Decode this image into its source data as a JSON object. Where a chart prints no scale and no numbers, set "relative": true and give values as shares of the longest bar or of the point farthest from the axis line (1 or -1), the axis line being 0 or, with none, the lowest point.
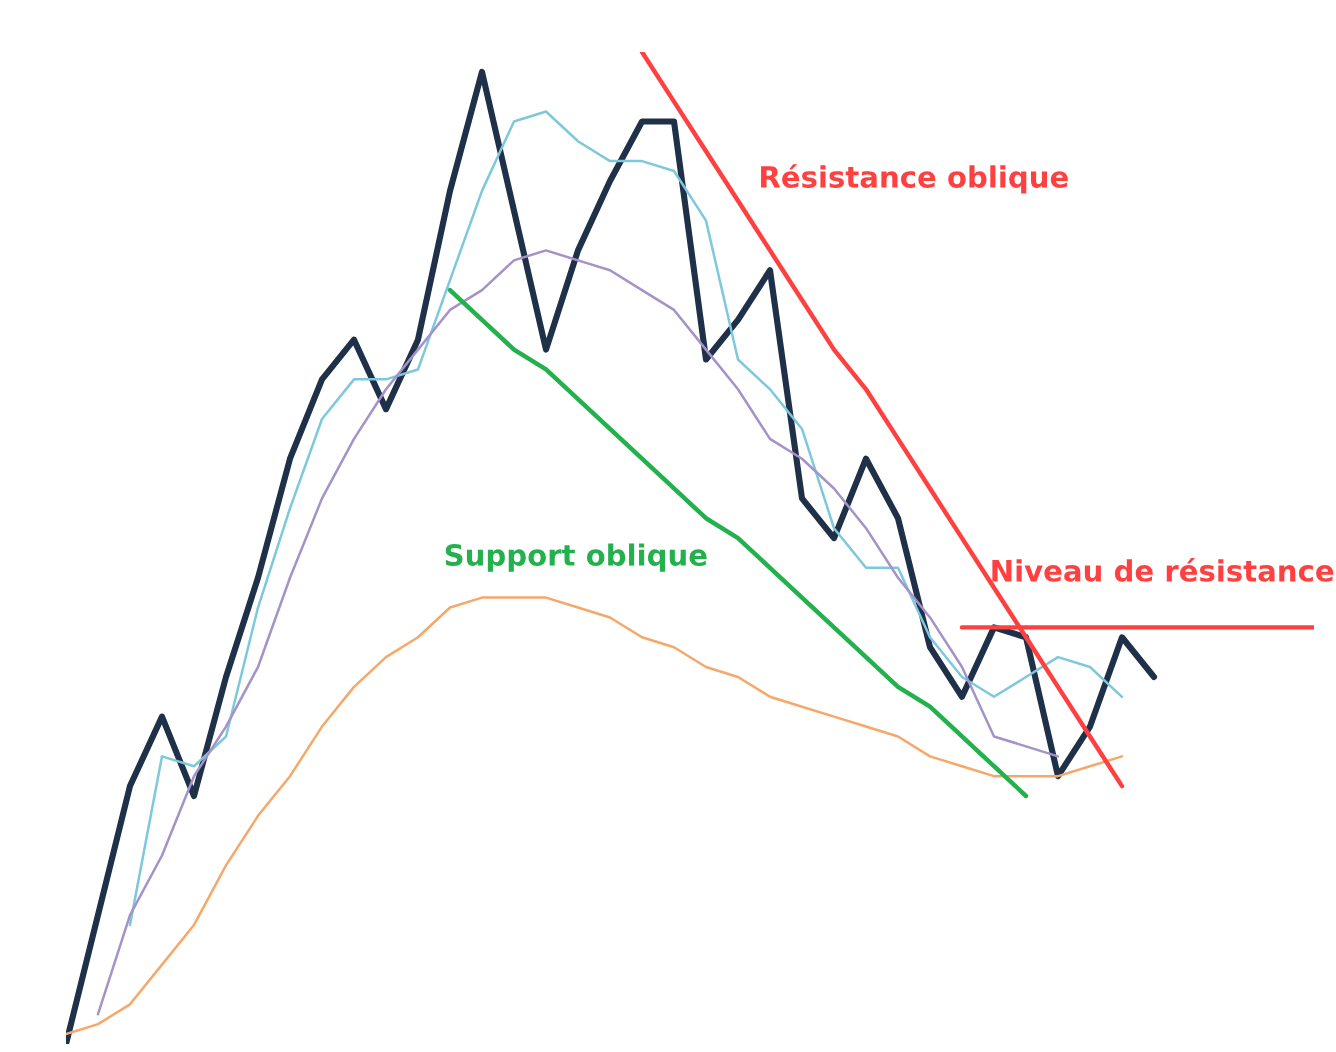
{
  "chart_data": {
    "type": "line",
    "relative": true,
    "categories": [
      null,
      null,
      null,
      null,
      null,
      null,
      null,
      null,
      null,
      null,
      null,
      null,
      null,
      null,
      null,
      null,
      null,
      null,
      null,
      null,
      null,
      null,
      null,
      null,
      null,
      null,
      null,
      null,
      null,
      null,
      null,
      null,
      null,
      null,
      null,
      null,
      null,
      null,
      null,
      null
    ],
    "series": [
      {
        "color": "#1f3049",
        "values": [
          0,
          0.13,
          0.26,
          0.33,
          0.25,
          0.37,
          0.47,
          0.59,
          0.67,
          0.71,
          0.64,
          0.71,
          0.86,
          0.98,
          0.84,
          0.7,
          0.8,
          0.87,
          0.93,
          0.93,
          0.69,
          0.73,
          0.78,
          0.55,
          0.51,
          0.59,
          0.53,
          0.4,
          0.35,
          0.42,
          0.41,
          0.27,
          0.32,
          0.41,
          0.37,
          null,
          null,
          null,
          null,
          null
        ]
      },
      {
        "color": "#7ec8dc",
        "values": [
          null,
          null,
          0.12,
          0.29,
          0.28,
          0.31,
          0.44,
          0.54,
          0.63,
          0.67,
          0.67,
          0.68,
          0.77,
          0.86,
          0.93,
          0.94,
          0.91,
          0.89,
          0.89,
          0.88,
          0.83,
          0.69,
          0.66,
          0.62,
          0.52,
          0.48,
          0.48,
          0.41,
          0.37,
          0.35,
          0.37,
          0.39,
          0.38,
          0.35,
          null,
          null,
          null,
          null,
          null,
          null
        ]
      },
      {
        "color": "#a393c8",
        "values": [
          null,
          0.03,
          0.13,
          0.19,
          0.27,
          0.32,
          0.38,
          0.47,
          0.55,
          0.61,
          0.66,
          0.7,
          0.74,
          0.76,
          0.79,
          0.8,
          0.79,
          0.78,
          0.76,
          0.74,
          0.7,
          0.66,
          0.61,
          0.59,
          0.56,
          0.52,
          0.47,
          0.43,
          0.38,
          0.31,
          0.3,
          0.29,
          null,
          null,
          null,
          null,
          null,
          null,
          null,
          null
        ]
      },
      {
        "color": "#f5a86a",
        "values": [
          0.01,
          0.02,
          0.04,
          0.08,
          0.12,
          0.18,
          0.23,
          0.27,
          0.32,
          0.36,
          0.39,
          0.41,
          0.44,
          0.45,
          0.45,
          0.45,
          0.44,
          0.43,
          0.41,
          0.4,
          0.38,
          0.37,
          0.35,
          0.34,
          0.33,
          0.32,
          0.31,
          0.29,
          0.28,
          0.27,
          0.27,
          0.27,
          0.28,
          0.29,
          null,
          null,
          null,
          null,
          null,
          null
        ]
      },
      {
        "color": "#ff4040",
        "values": [
          null,
          null,
          null,
          null,
          null,
          null,
          null,
          null,
          null,
          null,
          null,
          null,
          null,
          null,
          null,
          null,
          null,
          null,
          1.0,
          0.95,
          0.9,
          0.85,
          0.8,
          0.75,
          0.7,
          0.66,
          0.61,
          0.56,
          0.51,
          0.46,
          0.41,
          0.36,
          0.31,
          0.26,
          null,
          null,
          null,
          null,
          null,
          null
        ]
      },
      {
        "color": "#22b14c",
        "values": [
          null,
          null,
          null,
          null,
          null,
          null,
          null,
          null,
          null,
          null,
          null,
          null,
          0.76,
          0.73,
          0.7,
          0.68,
          0.65,
          0.62,
          0.59,
          0.56,
          0.53,
          0.51,
          0.48,
          0.45,
          0.42,
          0.39,
          0.36,
          0.34,
          0.31,
          0.28,
          0.25,
          null,
          null,
          null,
          null,
          null,
          null,
          null,
          null,
          null
        ]
      },
      {
        "color": "#ff4040",
        "values": [
          null,
          null,
          null,
          null,
          null,
          null,
          null,
          null,
          null,
          null,
          null,
          null,
          null,
          null,
          null,
          null,
          null,
          null,
          null,
          null,
          null,
          null,
          null,
          null,
          null,
          null,
          null,
          null,
          0.42,
          0.42,
          0.42,
          0.42,
          0.42,
          0.42,
          0.42,
          0.42,
          0.42,
          0.42,
          0.42,
          0.42
        ]
      }
    ],
    "annotations": [
      "Résistance oblique",
      "Support oblique",
      "Niveau de résistance"
    ]
  }
}
